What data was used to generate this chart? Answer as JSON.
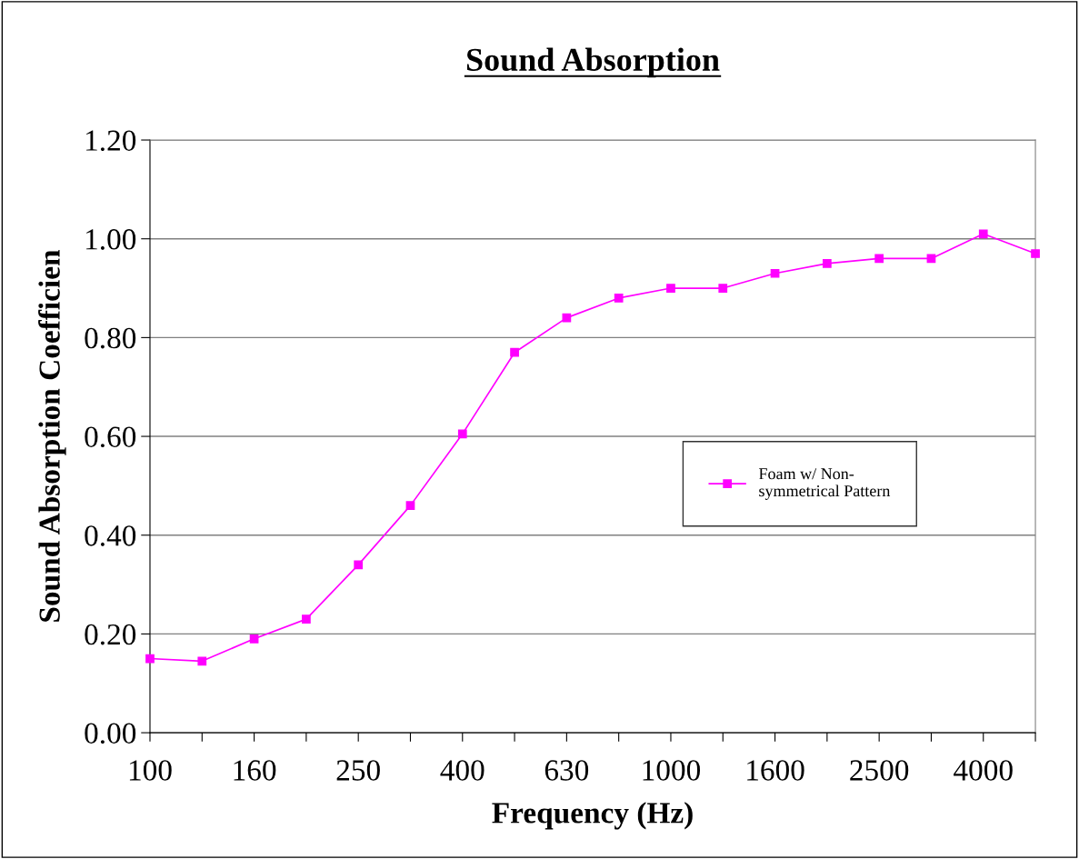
{
  "chart_data": {
    "type": "line",
    "title": "Sound Absorption",
    "xlabel": "Frequency (Hz)",
    "ylabel": "Sound Absorption Coefficien",
    "categories": [
      "100",
      null,
      "160",
      null,
      "250",
      null,
      "400",
      null,
      "630",
      null,
      "1000",
      null,
      "1600",
      null,
      "2500",
      null,
      "4000",
      null
    ],
    "series": [
      {
        "name": "Foam w/ Non-symmetrical Pattern",
        "color": "#ff00ff",
        "values": [
          0.15,
          0.145,
          0.19,
          0.23,
          0.34,
          0.46,
          0.605,
          0.77,
          0.84,
          0.88,
          0.9,
          0.9,
          0.93,
          0.95,
          0.96,
          0.96,
          1.01,
          0.97
        ]
      }
    ],
    "ylim": [
      0,
      1.2
    ],
    "yticks": [
      {
        "value": 0,
        "label": "0.00"
      },
      {
        "value": 0.2,
        "label": "0.20"
      },
      {
        "value": 0.4,
        "label": "0.40"
      },
      {
        "value": 0.6,
        "label": "0.60"
      },
      {
        "value": 0.8,
        "label": "0.80"
      },
      {
        "value": 1.0,
        "label": "1.00"
      },
      {
        "value": 1.2,
        "label": "1.20"
      }
    ],
    "grid": "y",
    "legend": "right",
    "marker": "square",
    "line_style": "solid"
  }
}
